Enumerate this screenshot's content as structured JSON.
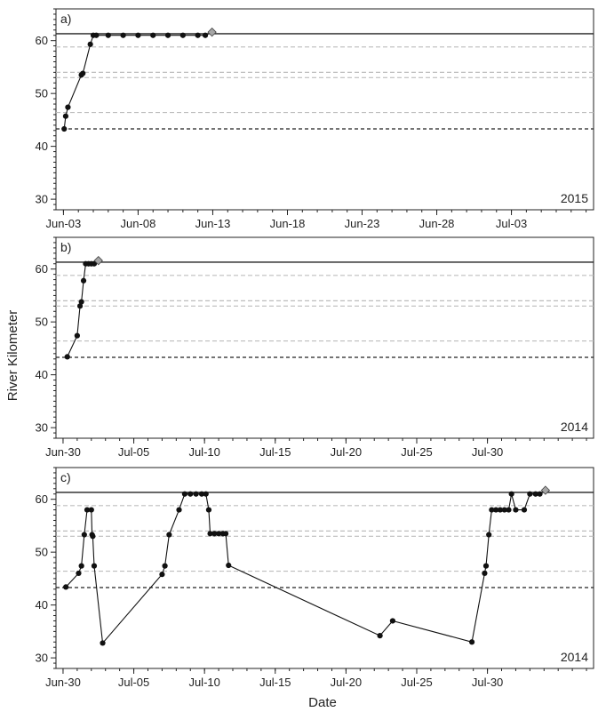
{
  "chart_data": {
    "type": "line",
    "ylabel": "River Kilometer",
    "xlabel": "Date",
    "reference_lines": {
      "solid_black": 61.3,
      "dashed_black": 43.3,
      "dashed_gray": [
        58.8,
        54.0,
        53.0,
        46.4
      ],
      "gray_color": "#bdbdbd"
    },
    "panels": [
      {
        "tag": "a)",
        "year": "2015",
        "ylim": [
          28,
          66
        ],
        "yticks": [
          30,
          40,
          50,
          60
        ],
        "xlim": [
          -0.5,
          35.5
        ],
        "xticks": [
          {
            "x": 0,
            "label": "Jun-03"
          },
          {
            "x": 5,
            "label": "Jun-08"
          },
          {
            "x": 10,
            "label": "Jun-13"
          },
          {
            "x": 15,
            "label": "Jun-18"
          },
          {
            "x": 20,
            "label": "Jun-23"
          },
          {
            "x": 25,
            "label": "Jun-28"
          },
          {
            "x": 30,
            "label": "Jul-03"
          }
        ],
        "series": [
          {
            "x": 0.05,
            "y": 43.3
          },
          {
            "x": 0.15,
            "y": 45.7
          },
          {
            "x": 0.3,
            "y": 47.4
          },
          {
            "x": 1.2,
            "y": 53.5
          },
          {
            "x": 1.3,
            "y": 53.8
          },
          {
            "x": 1.8,
            "y": 59.3
          },
          {
            "x": 2.0,
            "y": 61.0
          },
          {
            "x": 2.2,
            "y": 61.0
          },
          {
            "x": 3.0,
            "y": 61.0
          },
          {
            "x": 4.0,
            "y": 61.0
          },
          {
            "x": 5.0,
            "y": 61.0
          },
          {
            "x": 6.0,
            "y": 61.0
          },
          {
            "x": 7.0,
            "y": 61.0
          },
          {
            "x": 8.0,
            "y": 61.0
          },
          {
            "x": 9.0,
            "y": 61.0
          },
          {
            "x": 9.5,
            "y": 61.0
          }
        ],
        "end_marker": {
          "x": 9.95,
          "y": 61.6
        }
      },
      {
        "tag": "b)",
        "year": "2014",
        "ylim": [
          28,
          66
        ],
        "yticks": [
          30,
          40,
          50,
          60
        ],
        "xlim": [
          -0.5,
          37.5
        ],
        "xticks": [
          {
            "x": 0,
            "label": "Jun-30"
          },
          {
            "x": 5,
            "label": "Jul-05"
          },
          {
            "x": 10,
            "label": "Jul-10"
          },
          {
            "x": 15,
            "label": "Jul-15"
          },
          {
            "x": 20,
            "label": "Jul-20"
          },
          {
            "x": 25,
            "label": "Jul-25"
          },
          {
            "x": 30,
            "label": "Jul-30"
          }
        ],
        "series": [
          {
            "x": 0.3,
            "y": 43.4
          },
          {
            "x": 1.0,
            "y": 47.4
          },
          {
            "x": 1.2,
            "y": 53.0
          },
          {
            "x": 1.3,
            "y": 53.8
          },
          {
            "x": 1.45,
            "y": 57.8
          },
          {
            "x": 1.6,
            "y": 61.0
          },
          {
            "x": 1.8,
            "y": 61.0
          },
          {
            "x": 2.0,
            "y": 61.0
          },
          {
            "x": 2.2,
            "y": 61.0
          }
        ],
        "end_marker": {
          "x": 2.5,
          "y": 61.6
        }
      },
      {
        "tag": "c)",
        "year": "2014",
        "ylim": [
          28,
          66
        ],
        "yticks": [
          30,
          40,
          50,
          60
        ],
        "xlim": [
          -0.5,
          37.5
        ],
        "xticks": [
          {
            "x": 0,
            "label": "Jun-30"
          },
          {
            "x": 5,
            "label": "Jul-05"
          },
          {
            "x": 10,
            "label": "Jul-10"
          },
          {
            "x": 15,
            "label": "Jul-15"
          },
          {
            "x": 20,
            "label": "Jul-20"
          },
          {
            "x": 25,
            "label": "Jul-25"
          },
          {
            "x": 30,
            "label": "Jul-30"
          }
        ],
        "series": [
          {
            "x": 0.2,
            "y": 43.4
          },
          {
            "x": 1.1,
            "y": 46.0
          },
          {
            "x": 1.3,
            "y": 47.4
          },
          {
            "x": 1.5,
            "y": 53.3
          },
          {
            "x": 1.7,
            "y": 58.0
          },
          {
            "x": 2.0,
            "y": 58.0
          },
          {
            "x": 2.05,
            "y": 53.3
          },
          {
            "x": 2.1,
            "y": 53.0
          },
          {
            "x": 2.2,
            "y": 47.4
          },
          {
            "x": 2.8,
            "y": 32.8
          },
          {
            "x": 7.0,
            "y": 45.8
          },
          {
            "x": 7.2,
            "y": 47.4
          },
          {
            "x": 7.5,
            "y": 53.3
          },
          {
            "x": 8.2,
            "y": 58.0
          },
          {
            "x": 8.6,
            "y": 61.0
          },
          {
            "x": 9.0,
            "y": 61.0
          },
          {
            "x": 9.4,
            "y": 61.0
          },
          {
            "x": 9.8,
            "y": 61.0
          },
          {
            "x": 10.1,
            "y": 61.0
          },
          {
            "x": 10.3,
            "y": 58.0
          },
          {
            "x": 10.4,
            "y": 53.5
          },
          {
            "x": 10.7,
            "y": 53.5
          },
          {
            "x": 11.0,
            "y": 53.5
          },
          {
            "x": 11.3,
            "y": 53.5
          },
          {
            "x": 11.5,
            "y": 53.5
          },
          {
            "x": 11.7,
            "y": 47.5
          },
          {
            "x": 22.4,
            "y": 34.2
          },
          {
            "x": 23.3,
            "y": 37.0
          },
          {
            "x": 28.9,
            "y": 33.0
          },
          {
            "x": 29.8,
            "y": 46.0
          },
          {
            "x": 29.9,
            "y": 47.4
          },
          {
            "x": 30.1,
            "y": 53.3
          },
          {
            "x": 30.3,
            "y": 58.0
          },
          {
            "x": 30.6,
            "y": 58.0
          },
          {
            "x": 30.9,
            "y": 58.0
          },
          {
            "x": 31.2,
            "y": 58.0
          },
          {
            "x": 31.5,
            "y": 58.0
          },
          {
            "x": 31.7,
            "y": 61.0
          },
          {
            "x": 32.0,
            "y": 58.0
          },
          {
            "x": 32.6,
            "y": 58.0
          },
          {
            "x": 33.0,
            "y": 61.0
          },
          {
            "x": 33.4,
            "y": 61.0
          },
          {
            "x": 33.7,
            "y": 61.0
          }
        ],
        "end_marker": {
          "x": 34.1,
          "y": 61.7
        }
      }
    ]
  }
}
